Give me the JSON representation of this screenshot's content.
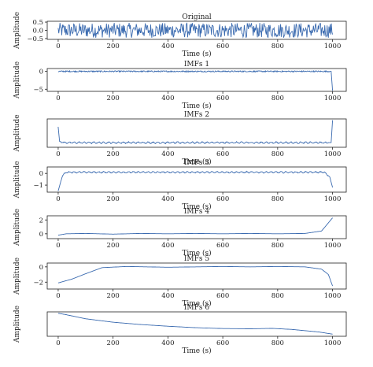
{
  "line_color": "#3b6bb0",
  "xlabel": "Time (s)",
  "ylabel": "Amplitude",
  "x_ticks": [
    0,
    200,
    400,
    600,
    800,
    1000
  ],
  "chart_data": [
    {
      "type": "line",
      "title": "Original",
      "xlabel": "Time (s)",
      "ylabel": "Amplitude",
      "xlim": [
        -40,
        1050
      ],
      "ylim": [
        -0.55,
        0.55
      ],
      "y_ticks": [
        -0.5,
        0.0,
        0.5
      ],
      "y_tick_labels": [
        "−0.5",
        "0.0",
        "0.5"
      ],
      "signal": "noise",
      "x": [
        0,
        1000
      ],
      "y_range": [
        -0.45,
        0.45
      ]
    },
    {
      "type": "line",
      "title": "IMFs 1",
      "xlabel": "Time (s)",
      "ylabel": "Amplitude",
      "xlim": [
        -40,
        1050
      ],
      "ylim": [
        -5.6,
        0.8
      ],
      "y_ticks": [
        -5,
        0
      ],
      "y_tick_labels": [
        "−5",
        "0"
      ],
      "signal": "fine",
      "x": [
        0,
        995,
        1000
      ],
      "y": [
        0,
        0,
        -5.4
      ]
    },
    {
      "type": "line",
      "title": "IMFs 2",
      "xlabel": "Time (s)",
      "ylabel": "Amplitude",
      "xlim": [
        -40,
        1050
      ],
      "ylim": [
        -0.35,
        1.8
      ],
      "y_ticks": [],
      "y_tick_labels": [],
      "signal": "wave",
      "x": [
        0,
        5,
        20,
        995,
        1000
      ],
      "y": [
        1.2,
        0.1,
        0,
        0,
        1.7
      ]
    },
    {
      "type": "line",
      "title": "IMFs 3",
      "xlabel": "Time (s)",
      "ylabel": "Amplitude",
      "xlim": [
        -40,
        1050
      ],
      "ylim": [
        -1.6,
        0.55
      ],
      "y_ticks": [
        -1,
        0
      ],
      "y_tick_labels": [
        "−1",
        "0"
      ],
      "signal": "wave",
      "x": [
        0,
        15,
        30,
        970,
        990,
        1000
      ],
      "y": [
        -1.5,
        -0.2,
        0.1,
        0.1,
        -0.3,
        -1.2
      ]
    },
    {
      "type": "line",
      "title": "IMFs 4",
      "xlabel": "Time (s)",
      "ylabel": "Amplitude",
      "xlim": [
        -40,
        1050
      ],
      "ylim": [
        -0.7,
        2.6
      ],
      "y_ticks": [
        0,
        2
      ],
      "y_tick_labels": [
        "0",
        "2"
      ],
      "signal": "smooth",
      "x": [
        0,
        30,
        100,
        200,
        300,
        400,
        500,
        600,
        700,
        800,
        900,
        960,
        1000
      ],
      "y": [
        -0.2,
        0,
        0.05,
        -0.05,
        0.05,
        0,
        0.05,
        0,
        0.05,
        0,
        0.05,
        0.4,
        2.3
      ]
    },
    {
      "type": "line",
      "title": "IMFs 5",
      "xlabel": "Time (s)",
      "ylabel": "Amplitude",
      "xlim": [
        -40,
        1050
      ],
      "ylim": [
        -2.9,
        0.5
      ],
      "y_ticks": [
        -2,
        0
      ],
      "y_tick_labels": [
        "−2",
        "0"
      ],
      "signal": "smooth",
      "x": [
        0,
        50,
        100,
        160,
        250,
        400,
        500,
        600,
        700,
        800,
        900,
        960,
        985,
        1000
      ],
      "y": [
        -2.1,
        -1.6,
        -0.9,
        -0.1,
        0.05,
        -0.05,
        0,
        0.05,
        0,
        0.05,
        0,
        -0.3,
        -1.0,
        -2.5
      ]
    },
    {
      "type": "line",
      "title": "IMFs 6",
      "xlabel": "Time (s)",
      "ylabel": "Amplitude",
      "xlim": [
        -40,
        1050
      ],
      "ylim": [
        -0.6,
        1.1
      ],
      "y_ticks": [],
      "y_tick_labels": [],
      "signal": "smooth",
      "x": [
        0,
        30,
        100,
        200,
        300,
        400,
        500,
        600,
        700,
        780,
        850,
        950,
        1000
      ],
      "y": [
        1.0,
        0.9,
        0.62,
        0.38,
        0.22,
        0.1,
        0.0,
        -0.06,
        -0.08,
        -0.05,
        -0.12,
        -0.3,
        -0.45
      ]
    }
  ]
}
